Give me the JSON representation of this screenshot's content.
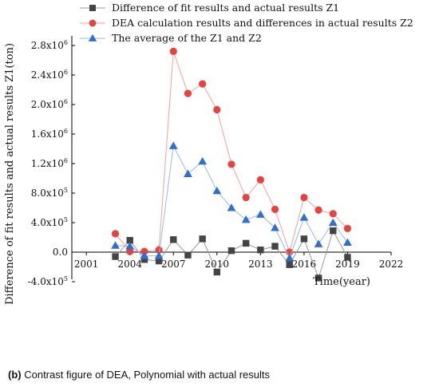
{
  "chart_data": {
    "type": "line",
    "ylabel": "Difference of fit results and actual results Z1(ton)",
    "xlabel": "Time(year)",
    "xlim": [
      2000,
      2022
    ],
    "ylim": [
      -400000,
      2900000
    ],
    "x_ticks": [
      2001,
      2004,
      2007,
      2010,
      2013,
      2016,
      2019,
      2022
    ],
    "x_tick_labels": [
      "2001",
      "2004",
      "2007",
      "2010",
      "2013",
      "2016",
      "2019",
      "2022"
    ],
    "y_ticks": [
      -400000,
      0,
      400000,
      800000,
      1200000,
      1600000,
      2000000,
      2400000,
      2800000
    ],
    "y_tick_labels": [
      {
        "mant": "-4.0x10",
        "exp": "5"
      },
      {
        "mant": "0.0",
        "exp": ""
      },
      {
        "mant": "4.0x10",
        "exp": "5"
      },
      {
        "mant": "8.0x10",
        "exp": "5"
      },
      {
        "mant": "1.2x10",
        "exp": "6"
      },
      {
        "mant": "1.6x10",
        "exp": "6"
      },
      {
        "mant": "2.0x10",
        "exp": "6"
      },
      {
        "mant": "2.4x10",
        "exp": "6"
      },
      {
        "mant": "2.8x10",
        "exp": "6"
      }
    ],
    "legend_position": "top-left",
    "series": [
      {
        "name": "Difference of fit results and actual results Z1",
        "color": "#444444",
        "line_color": "#9a9a9a",
        "marker": "square",
        "x": [
          2003,
          2004,
          2005,
          2006,
          2007,
          2008,
          2009,
          2010,
          2011,
          2012,
          2013,
          2014,
          2015,
          2016,
          2017,
          2018,
          2019
        ],
        "values": [
          -60000,
          160000,
          -100000,
          -120000,
          170000,
          -40000,
          180000,
          -270000,
          20000,
          120000,
          30000,
          80000,
          -170000,
          180000,
          -350000,
          290000,
          -70000
        ]
      },
      {
        "name": "DEA calculation results and differences in actual results Z2",
        "color": "#e8413e",
        "line_color": "#f2a0a0",
        "marker": "circle",
        "x": [
          2003,
          2004,
          2005,
          2006,
          2007,
          2008,
          2009,
          2010,
          2011,
          2012,
          2013,
          2014,
          2015,
          2016,
          2017,
          2018,
          2019
        ],
        "values": [
          250000,
          10000,
          10000,
          30000,
          2720000,
          2150000,
          2280000,
          1930000,
          1190000,
          740000,
          980000,
          580000,
          0,
          740000,
          570000,
          520000,
          320000
        ]
      },
      {
        "name": "The average of the Z1 and Z2",
        "color": "#2f6fd1",
        "line_color": "#9ab8e8",
        "marker": "triangle",
        "x": [
          2003,
          2004,
          2005,
          2006,
          2007,
          2008,
          2009,
          2010,
          2011,
          2012,
          2013,
          2014,
          2015,
          2016,
          2017,
          2018,
          2019
        ],
        "values": [
          90000,
          80000,
          -50000,
          -50000,
          1440000,
          1060000,
          1230000,
          830000,
          600000,
          440000,
          510000,
          330000,
          -80000,
          470000,
          110000,
          400000,
          130000
        ]
      }
    ]
  },
  "caption": {
    "label": "(b)",
    "text": " Contrast figure of DEA, Polynomial with actual results"
  }
}
